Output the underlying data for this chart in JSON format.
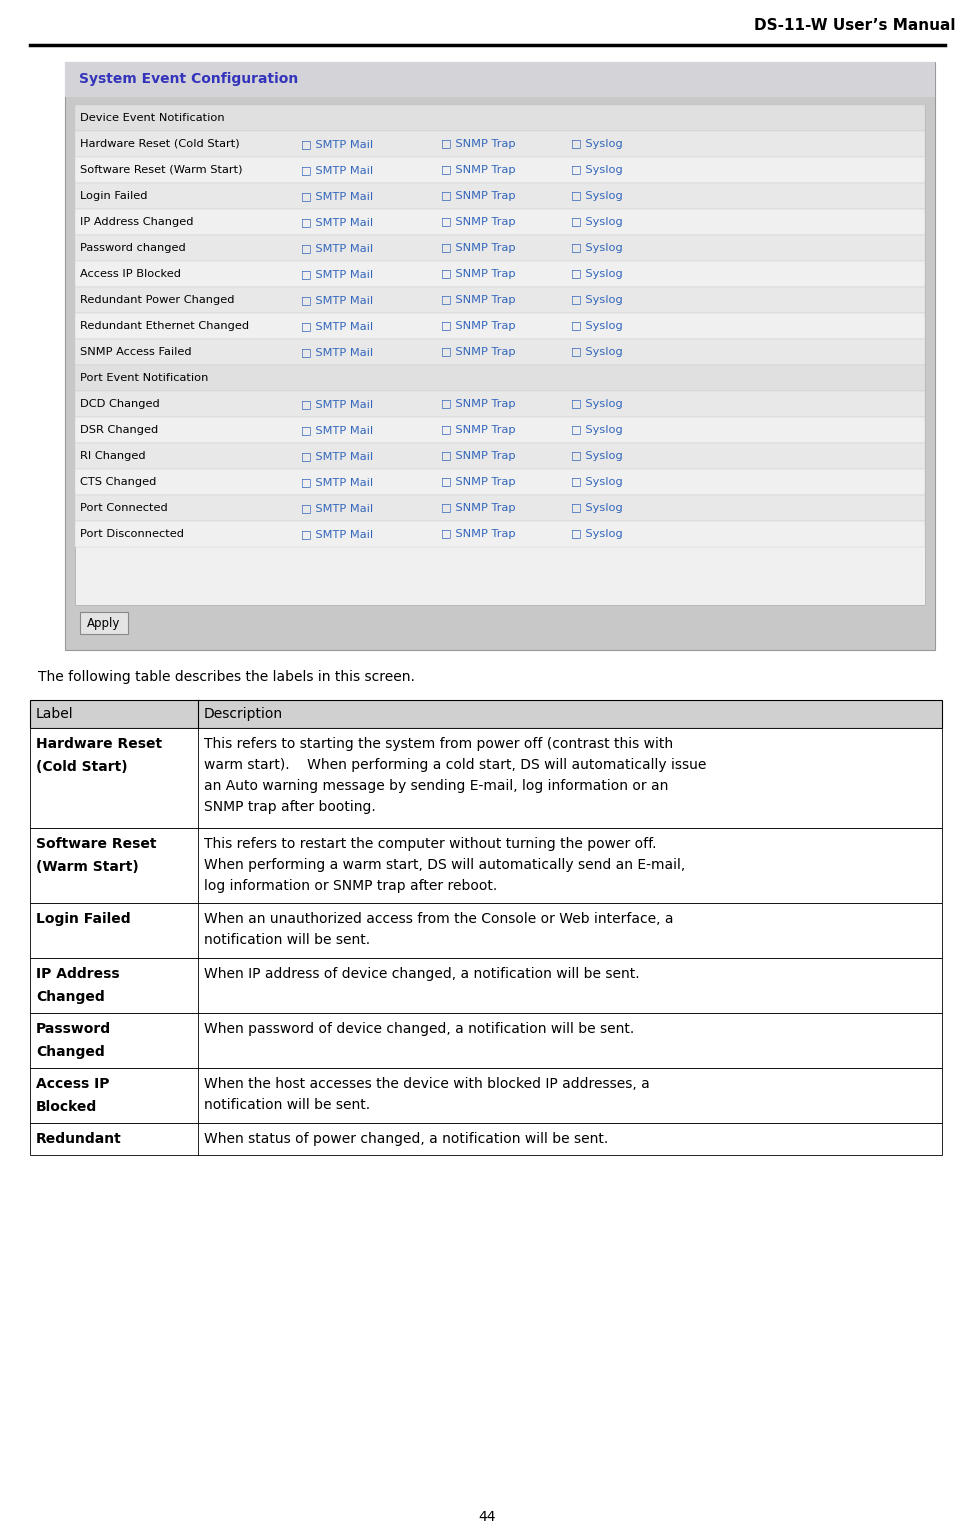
{
  "title": "DS-11-W User’s Manual",
  "page_number": "44",
  "bg_color": "#ffffff",
  "header_line_color": "#000000",
  "intro_text": "The following table describes the labels in this screen.",
  "table_header": [
    "Label",
    "Description"
  ],
  "table_header_bg": "#d0d0d0",
  "table_rows": [
    {
      "label": "Hardware Reset\n(Cold Start)",
      "label_bold": true,
      "description": "This refers to starting the system from power off (contrast this with\nwarm start).    When performing a cold start, DS will automatically issue\nan Auto warning message by sending E-mail, log information or an\nSNMP trap after booting.",
      "desc_lines": 4
    },
    {
      "label": "Software Reset\n(Warm Start)",
      "label_bold": true,
      "description": "This refers to restart the computer without turning the power off.\nWhen performing a warm start, DS will automatically send an E-mail,\nlog information or SNMP trap after reboot.",
      "desc_lines": 3
    },
    {
      "label": "Login Failed",
      "label_bold": true,
      "description": "When an unauthorized access from the Console or Web interface, a\nnotification will be sent.",
      "desc_lines": 2
    },
    {
      "label": "IP Address\nChanged",
      "label_bold": true,
      "description": "When IP address of device changed, a notification will be sent.",
      "desc_lines": 1
    },
    {
      "label": "Password\nChanged",
      "label_bold": true,
      "description": "When password of device changed, a notification will be sent.",
      "desc_lines": 1
    },
    {
      "label": "Access IP\nBlocked",
      "label_bold": true,
      "description": "When the host accesses the device with blocked IP addresses, a\nnotification will be sent.",
      "desc_lines": 2
    },
    {
      "label": "Redundant",
      "label_bold": true,
      "description": "When status of power changed, a notification will be sent.",
      "desc_lines": 1
    }
  ],
  "screenshot_bg": "#c8c8c8",
  "screenshot_title_text": "System Event Configuration",
  "screenshot_title_color": "#3333bb",
  "screenshot_section1": "Device Event Notification",
  "screenshot_section2": "Port Event Notification",
  "screenshot_rows_device": [
    "Hardware Reset (Cold Start)",
    "Software Reset (Warm Start)",
    "Login Failed",
    "IP Address Changed",
    "Password changed",
    "Access IP Blocked",
    "Redundant Power Changed",
    "Redundant Ethernet Changed",
    "SNMP Access Failed"
  ],
  "screenshot_rows_port": [
    "DCD Changed",
    "DSR Changed",
    "RI Changed",
    "CTS Changed",
    "Port Connected",
    "Port Disconnected"
  ],
  "checkbox_color": "#3366bb",
  "apply_button_text": "Apply"
}
